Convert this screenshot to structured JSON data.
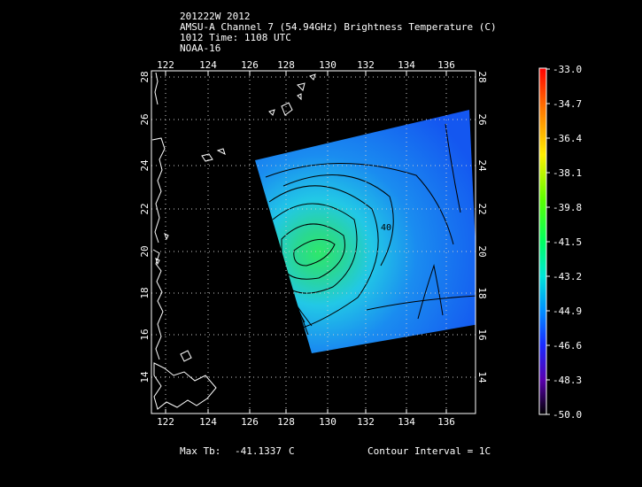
{
  "header": {
    "line1": "201222W 2012",
    "line2": "AMSU-A Channel 7 (54.94GHz) Brightness Temperature (C)",
    "line3": "1012 Time: 1108 UTC",
    "line4": "NOAA-16"
  },
  "map": {
    "lon_ticks": [
      "122",
      "124",
      "126",
      "128",
      "130",
      "132",
      "134",
      "136"
    ],
    "lat_ticks": [
      "14",
      "16",
      "18",
      "20",
      "22",
      "24",
      "26",
      "28"
    ],
    "contour_label": "40"
  },
  "colorbar": {
    "labels": [
      "-33.0",
      "-34.7",
      "-36.4",
      "-38.1",
      "-39.8",
      "-41.5",
      "-43.2",
      "-44.9",
      "-46.6",
      "-48.3",
      "-50.0"
    ]
  },
  "footer": {
    "max_label": "Max Tb:",
    "max_value": "-41.1337",
    "max_unit": "C",
    "contour_interval": "Contour Interval = 1C"
  },
  "colors": {
    "background": "#000000",
    "swath_core": "#2ee86a",
    "swath_mid": "#22c8e6",
    "swath_edge": "#1457f0",
    "coast": "#ffffff"
  }
}
